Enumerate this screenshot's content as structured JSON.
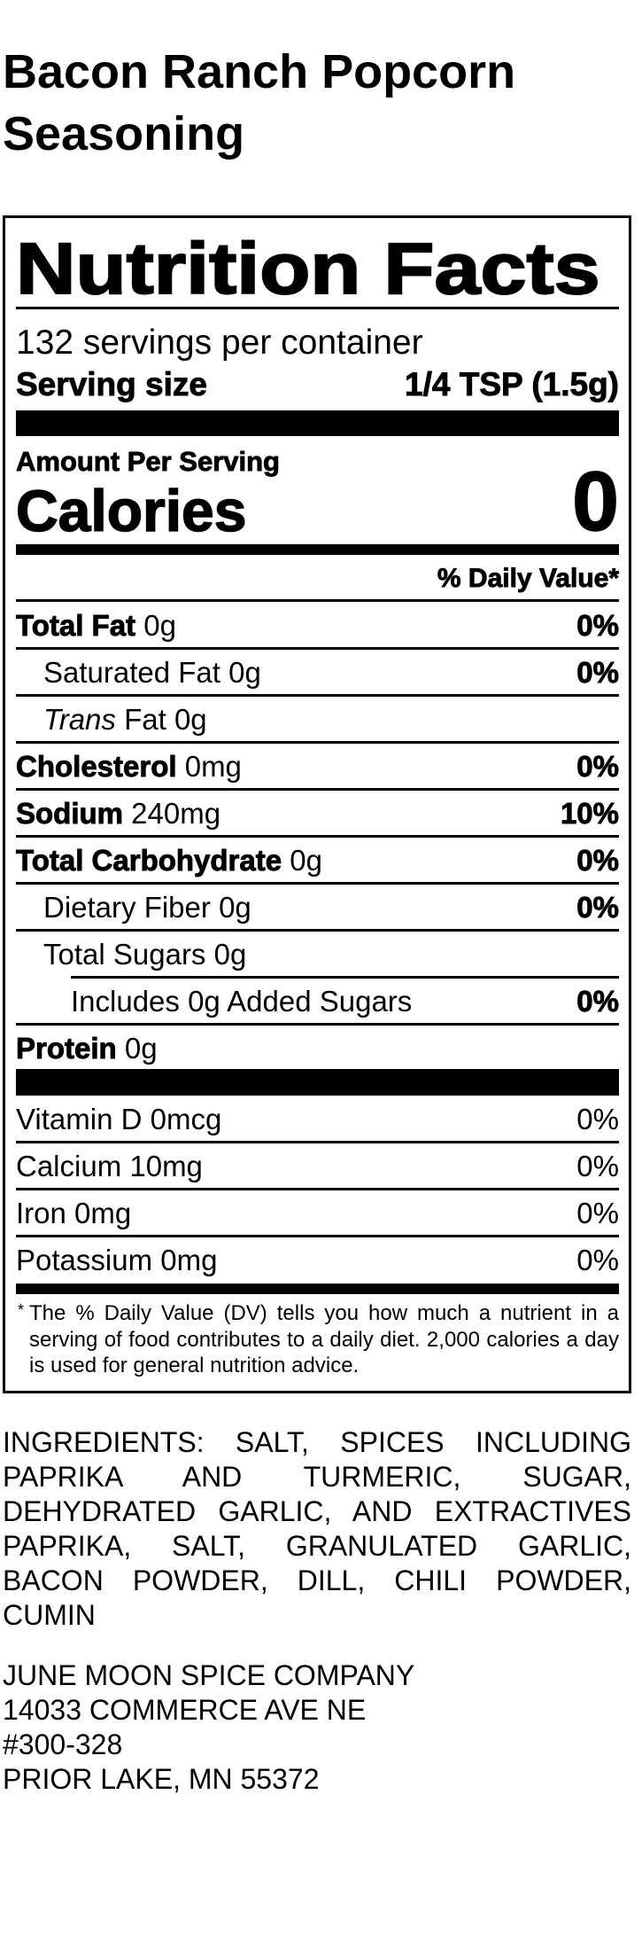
{
  "product_title": "Bacon Ranch Popcorn Seasoning",
  "label": {
    "heading": "Nutrition Facts",
    "servings_per_container": "132 servings per container",
    "serving_size_label": "Serving size",
    "serving_size_value": "1/4 TSP (1.5g)",
    "amount_per_serving": "Amount Per Serving",
    "calories_label": "Calories",
    "calories_value": "0",
    "daily_value_header": "% Daily Value*",
    "nutrients": [
      {
        "name": "Total Fat",
        "amount": "0g",
        "dv": "0%"
      },
      {
        "name": "Saturated Fat",
        "amount": "0g",
        "dv": "0%"
      },
      {
        "name_italic": "Trans",
        "name": "Fat",
        "amount": "0g"
      },
      {
        "name": "Cholesterol",
        "amount": "0mg",
        "dv": "0%"
      },
      {
        "name": "Sodium",
        "amount": "240mg",
        "dv": "10%"
      },
      {
        "name": "Total Carbohydrate",
        "amount": "0g",
        "dv": "0%"
      },
      {
        "name": "Dietary Fiber",
        "amount": "0g",
        "dv": "0%"
      },
      {
        "name": "Total Sugars",
        "amount": "0g"
      },
      {
        "name": "Includes 0g Added Sugars",
        "dv": "0%"
      },
      {
        "name": "Protein",
        "amount": "0g"
      }
    ],
    "micronutrients": [
      {
        "name": "Vitamin D 0mcg",
        "dv": "0%"
      },
      {
        "name": "Calcium 10mg",
        "dv": "0%"
      },
      {
        "name": "Iron 0mg",
        "dv": "0%"
      },
      {
        "name": "Potassium 0mg",
        "dv": "0%"
      }
    ],
    "footnote_marker": "*",
    "footnote": "The % Daily Value (DV) tells you how much a nutrient in a serving of food contributes to a daily diet. 2,000 calories a day is used for general nutrition advice."
  },
  "ingredients": "INGREDIENTS: SALT, SPICES INCLUDING PAPRIKA AND TURMERIC, SUGAR, DEHYDRATED GARLIC, AND EXTRACTIVES PAPRIKA, SALT, GRANULATED GARLIC, BACON POWDER, DILL, CHILI POWDER, CUMIN",
  "address": {
    "company": "JUNE MOON SPICE COMPANY",
    "street": "14033 COMMERCE AVE NE",
    "suite": "#300-328",
    "city": "PRIOR LAKE, MN 55372"
  }
}
